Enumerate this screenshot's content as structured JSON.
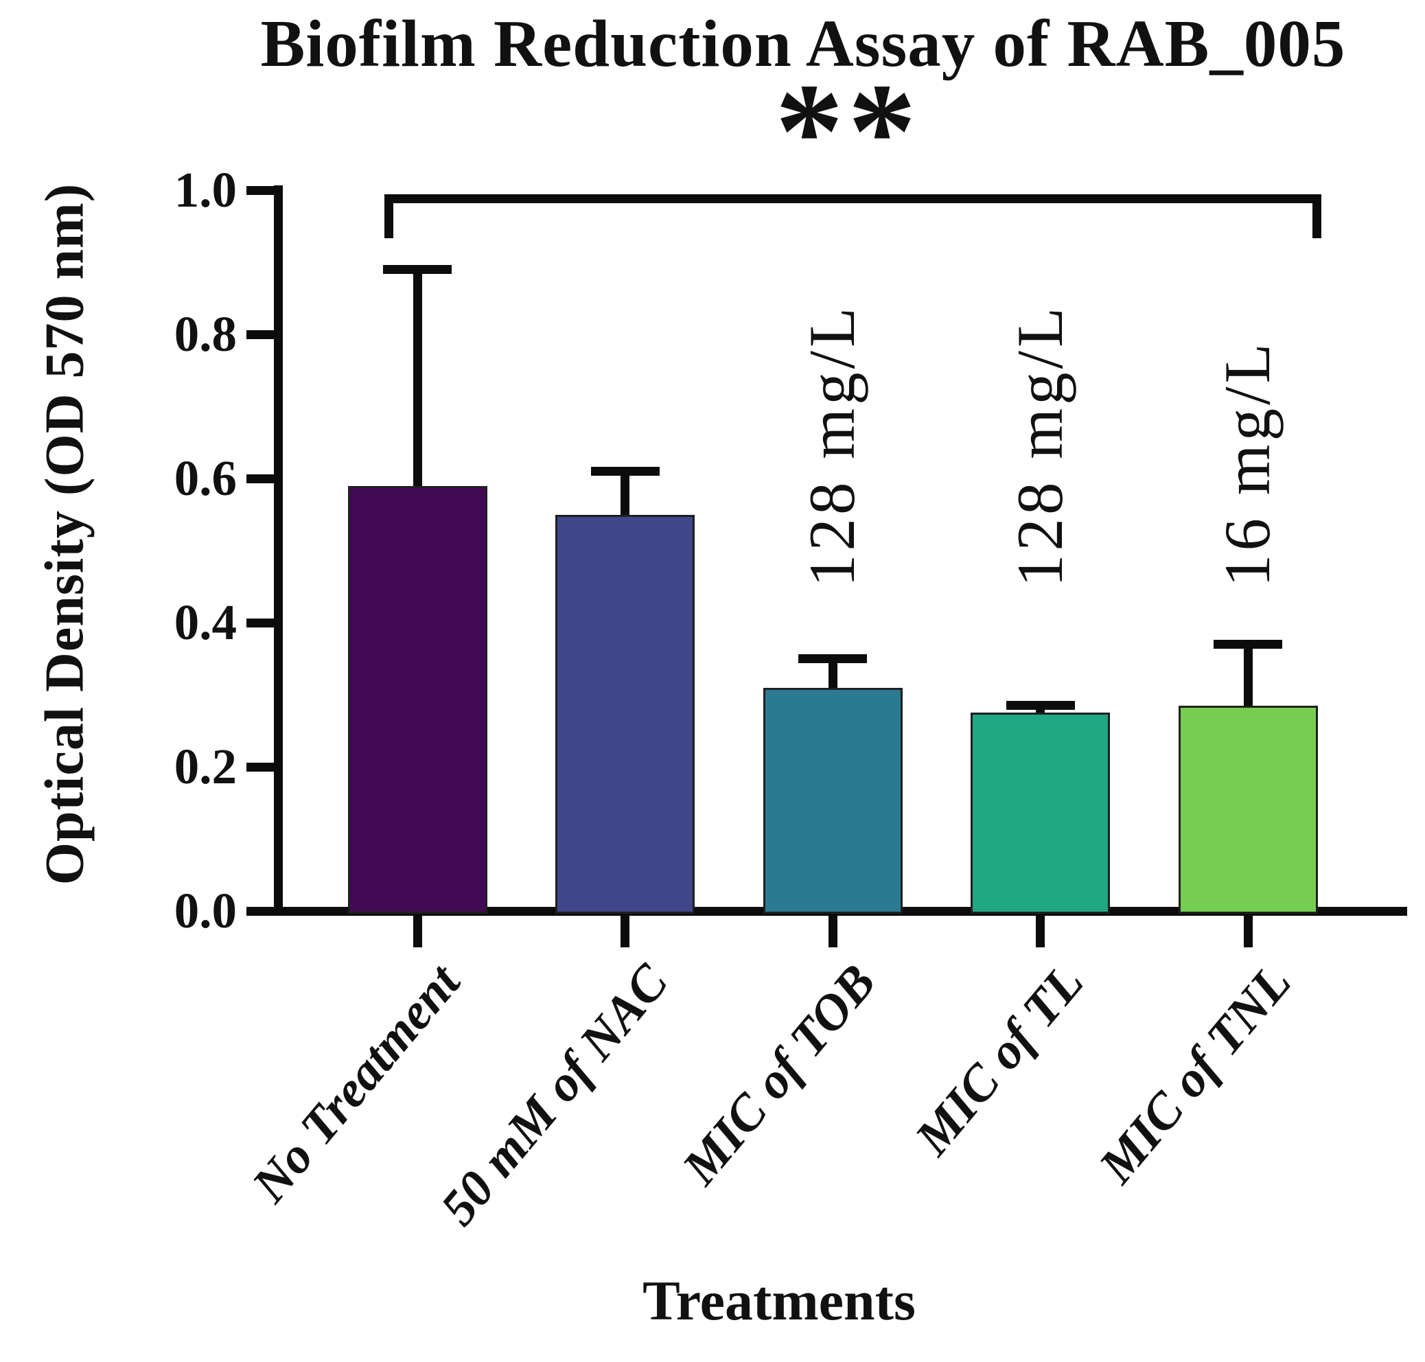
{
  "figure": {
    "title": "Biofilm Reduction Assay of RAB_005",
    "significance_label": "**",
    "x_axis_title": "Treatments",
    "y_axis_title": "Optical Density (OD 570 nm)"
  },
  "chart_data": {
    "type": "bar",
    "title": "Biofilm Reduction Assay of RAB_005",
    "xlabel": "Treatments",
    "ylabel": "Optical Density (OD 570 nm)",
    "ylim": [
      0.0,
      1.0
    ],
    "yticks": [
      1.0,
      0.8,
      0.6,
      0.4,
      0.2,
      0.0
    ],
    "ytick_labels": [
      "1.0",
      "0.8",
      "0.6",
      "0.4",
      "0.2",
      "0.0"
    ],
    "categories": [
      "No Treatment",
      "50 mM of NAC",
      "MIC of TOB",
      "MIC of TL",
      "MIC of TNL"
    ],
    "values": [
      0.59,
      0.55,
      0.31,
      0.275,
      0.285
    ],
    "errors_upper": [
      0.3,
      0.06,
      0.04,
      0.01,
      0.085
    ],
    "bar_colors": [
      "#420a54",
      "#414589",
      "#2a7a91",
      "#22a783",
      "#76ce51"
    ],
    "bar_annotations": [
      "",
      "",
      "128 mg/L",
      "128 mg/L",
      "16 mg/L"
    ],
    "significance": {
      "label": "**",
      "spans_categories": [
        "No Treatment",
        "MIC of TNL"
      ]
    },
    "grid": false,
    "legend": false
  }
}
